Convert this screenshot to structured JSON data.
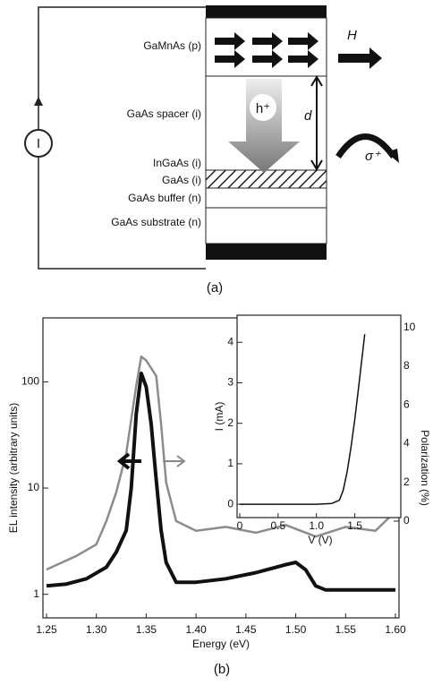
{
  "figure_a": {
    "label": "(a)",
    "layers": [
      "GaMnAs (p)",
      "GaAs spacer (i)",
      "InGaAs (i)",
      "GaAs (i)",
      "GaAs buffer (n)",
      "GaAs substrate (n)"
    ],
    "source": "I",
    "field": "H",
    "carrier": "h⁺",
    "distance": "d",
    "light": "σ⁺"
  },
  "figure_b_label": "(b)",
  "chart_data": [
    {
      "type": "line",
      "xlabel": "Energy (eV)",
      "ylabel": "EL intensity (arbitrary units)",
      "y2label": "Polarization (%)",
      "xlim": [
        1.25,
        1.6
      ],
      "xticks": [
        1.25,
        {
          "value": 1.3,
          "label": "1.30"
        },
        1.35,
        {
          "value": 1.4,
          "label": "1.40"
        },
        1.45,
        {
          "value": 1.5,
          "label": "1.50"
        },
        1.55,
        {
          "value": 1.6,
          "label": "1.60"
        }
      ],
      "ylim": [
        0.6,
        400
      ],
      "yticks": [
        1,
        10,
        100
      ],
      "ylog": true,
      "y2lim": [
        -5,
        10.5
      ],
      "y2ticks": [
        0,
        2,
        4,
        6,
        8,
        10
      ],
      "series": [
        {
          "color": "#111111",
          "width": 4,
          "x": [
            1.25,
            1.27,
            1.29,
            1.31,
            1.32,
            1.33,
            1.335,
            1.34,
            1.345,
            1.35,
            1.355,
            1.36,
            1.365,
            1.37,
            1.38,
            1.4,
            1.43,
            1.46,
            1.49,
            1.5,
            1.51,
            1.52,
            1.53,
            1.6
          ],
          "values": [
            1.2,
            1.25,
            1.4,
            1.8,
            2.5,
            4,
            10,
            50,
            120,
            90,
            40,
            12,
            4,
            2,
            1.3,
            1.3,
            1.4,
            1.6,
            1.9,
            2.0,
            1.7,
            1.2,
            1.1,
            1.1
          ]
        },
        {
          "color": "#8c8c8c",
          "width": 2.5,
          "axis": "y2",
          "x": [
            1.25,
            1.28,
            1.3,
            1.31,
            1.32,
            1.33,
            1.34,
            1.345,
            1.35,
            1.36,
            1.365,
            1.37,
            1.38,
            1.4,
            1.43,
            1.46,
            1.49,
            1.52,
            1.55,
            1.58,
            1.6
          ],
          "values": [
            -2.5,
            -1.8,
            -1.2,
            0,
            1.5,
            3.5,
            7,
            8.5,
            8.3,
            7.5,
            5,
            2,
            0,
            -0.5,
            -0.3,
            -0.6,
            -0.2,
            -0.8,
            -0.3,
            -0.5,
            0.5
          ]
        }
      ]
    },
    {
      "type": "line",
      "xlabel": "V (V)",
      "ylabel": "I (mA)",
      "xlim": [
        0,
        2.1
      ],
      "xticks": [
        0,
        0.5,
        {
          "value": 1,
          "label": "1.0"
        },
        1.5
      ],
      "ylim": [
        -0.33,
        4.67
      ],
      "yticks": [
        0,
        1,
        2,
        3,
        4
      ],
      "series": [
        {
          "color": "#111111",
          "width": 1.5,
          "x": [
            0,
            0.5,
            1.0,
            1.2,
            1.3,
            1.35,
            1.4,
            1.45,
            1.5,
            1.55,
            1.6,
            1.63
          ],
          "values": [
            0,
            0,
            0,
            0.02,
            0.1,
            0.35,
            0.8,
            1.4,
            2.1,
            2.9,
            3.7,
            4.2
          ]
        }
      ]
    }
  ]
}
